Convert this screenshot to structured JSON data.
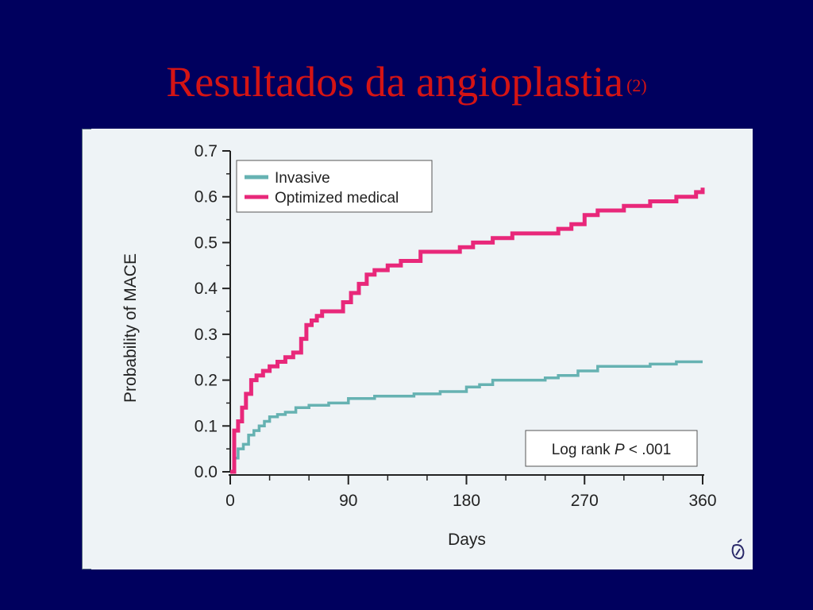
{
  "slide": {
    "title": "Resultados da angioplastia",
    "title_suffix": "(2)",
    "background_color": "#00005e",
    "title_color": "#d41414"
  },
  "chart_data": {
    "type": "line",
    "line_shape": "step",
    "title": "",
    "xlabel": "Days",
    "ylabel": "Probability of MACE",
    "xlim": [
      0,
      360
    ],
    "ylim": [
      0,
      0.7
    ],
    "x_ticks": [
      0,
      90,
      180,
      270,
      360
    ],
    "y_ticks": [
      0.0,
      0.1,
      0.2,
      0.3,
      0.4,
      0.5,
      0.6,
      0.7
    ],
    "x_tick_labels": [
      "0",
      "90",
      "180",
      "270",
      "360"
    ],
    "y_tick_labels": [
      "0.0",
      "0.1",
      "0.2",
      "0.3",
      "0.4",
      "0.5",
      "0.6",
      "0.7"
    ],
    "grid": false,
    "legend_position": "top-left",
    "annotation": {
      "prefix": "Log rank ",
      "italic": "P",
      "suffix": " < .001"
    },
    "logo_icon": "journal-logo-icon",
    "series": [
      {
        "name": "Invasive",
        "color": "#66b2b2",
        "x": [
          0,
          3,
          6,
          10,
          14,
          18,
          22,
          26,
          30,
          36,
          42,
          50,
          60,
          75,
          90,
          110,
          140,
          160,
          180,
          190,
          200,
          220,
          240,
          250,
          265,
          280,
          300,
          320,
          340,
          360
        ],
        "y": [
          0.0,
          0.03,
          0.05,
          0.06,
          0.08,
          0.09,
          0.1,
          0.11,
          0.12,
          0.125,
          0.13,
          0.14,
          0.145,
          0.15,
          0.16,
          0.165,
          0.17,
          0.175,
          0.185,
          0.19,
          0.2,
          0.2,
          0.205,
          0.21,
          0.22,
          0.23,
          0.23,
          0.235,
          0.24,
          0.24
        ]
      },
      {
        "name": "Optimized medical",
        "color": "#e8287a",
        "x": [
          0,
          3,
          6,
          9,
          12,
          16,
          20,
          25,
          30,
          36,
          42,
          48,
          54,
          58,
          62,
          66,
          70,
          80,
          86,
          92,
          98,
          104,
          110,
          120,
          130,
          145,
          165,
          175,
          185,
          200,
          215,
          230,
          250,
          260,
          270,
          280,
          300,
          320,
          340,
          355,
          360
        ],
        "y": [
          0.0,
          0.09,
          0.11,
          0.14,
          0.17,
          0.2,
          0.21,
          0.22,
          0.23,
          0.24,
          0.25,
          0.26,
          0.29,
          0.32,
          0.33,
          0.34,
          0.35,
          0.35,
          0.37,
          0.39,
          0.41,
          0.43,
          0.44,
          0.45,
          0.46,
          0.48,
          0.48,
          0.49,
          0.5,
          0.51,
          0.52,
          0.52,
          0.53,
          0.54,
          0.56,
          0.57,
          0.58,
          0.59,
          0.6,
          0.61,
          0.62
        ]
      }
    ]
  }
}
